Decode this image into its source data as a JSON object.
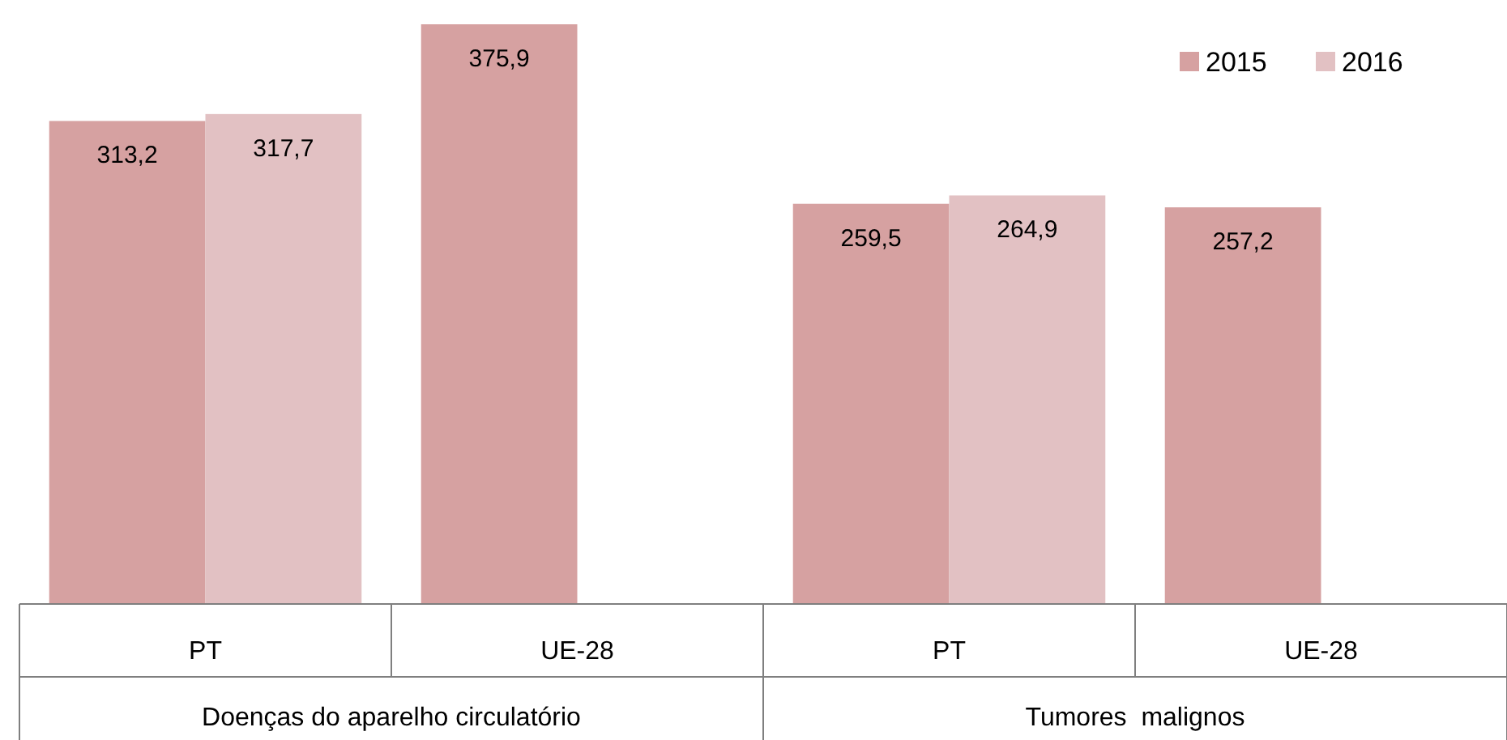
{
  "chart_data": {
    "type": "bar",
    "categories": [
      "PT",
      "UE-28",
      "PT",
      "UE-28"
    ],
    "series": [
      {
        "name": "2015",
        "color": "#d6a1a1",
        "values": [
          313.2,
          375.9,
          259.5,
          257.2
        ],
        "value_labels": [
          "313,2",
          "375,9",
          "259,5",
          "257,2"
        ]
      },
      {
        "name": "2016",
        "color": "#e2c1c3",
        "values": [
          317.7,
          null,
          264.9,
          null
        ],
        "value_labels": [
          "317,7",
          null,
          "264,9",
          null
        ]
      }
    ],
    "annotations": [
      "Doenças do aparelho circulatório",
      "Tumores  malignos"
    ],
    "tick_labels": "x",
    "legend": "top right"
  }
}
